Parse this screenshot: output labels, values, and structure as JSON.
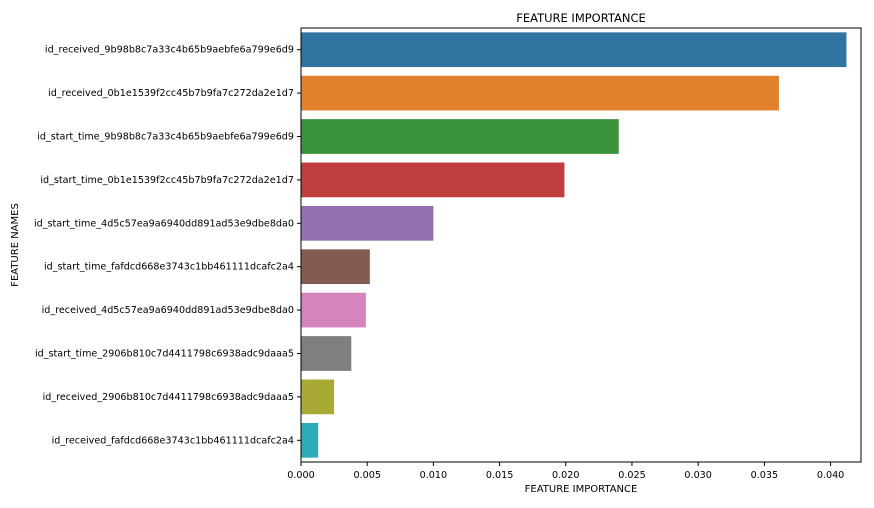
{
  "chart_data": {
    "type": "bar",
    "orientation": "horizontal",
    "title": "FEATURE IMPORTANCE",
    "xlabel": "FEATURE IMPORTANCE",
    "ylabel": "FEATURE NAMES",
    "xlim": [
      0,
      0.0423
    ],
    "grid": false,
    "categories": [
      "id_received_9b98b8c7a33c4b65b9aebfe6a799e6d9",
      "id_received_0b1e1539f2cc45b7b9fa7c272da2e1d7",
      "id_start_time_9b98b8c7a33c4b65b9aebfe6a799e6d9",
      "id_start_time_0b1e1539f2cc45b7b9fa7c272da2e1d7",
      "id_start_time_4d5c57ea9a6940dd891ad53e9dbe8da0",
      "id_start_time_fafdcd668e3743c1bb461111dcafc2a4",
      "id_received_4d5c57ea9a6940dd891ad53e9dbe8da0",
      "id_start_time_2906b810c7d4411798c6938adc9daaa5",
      "id_received_2906b810c7d4411798c6938adc9daaa5",
      "id_received_fafdcd668e3743c1bb461111dcafc2a4"
    ],
    "values": [
      0.0412,
      0.0361,
      0.024,
      0.0199,
      0.01,
      0.0052,
      0.0049,
      0.0038,
      0.0025,
      0.0013
    ],
    "colors": [
      "#3274a1",
      "#e1812c",
      "#3a923a",
      "#c03d3e",
      "#9372b2",
      "#845b53",
      "#d684bd",
      "#7f7f7f",
      "#a9aa35",
      "#2eabb8"
    ],
    "xticks": [
      0.0,
      0.005,
      0.01,
      0.015,
      0.02,
      0.025,
      0.03,
      0.035,
      0.04
    ],
    "xtick_labels": [
      "0.000",
      "0.005",
      "0.010",
      "0.015",
      "0.020",
      "0.025",
      "0.030",
      "0.035",
      "0.040"
    ]
  }
}
